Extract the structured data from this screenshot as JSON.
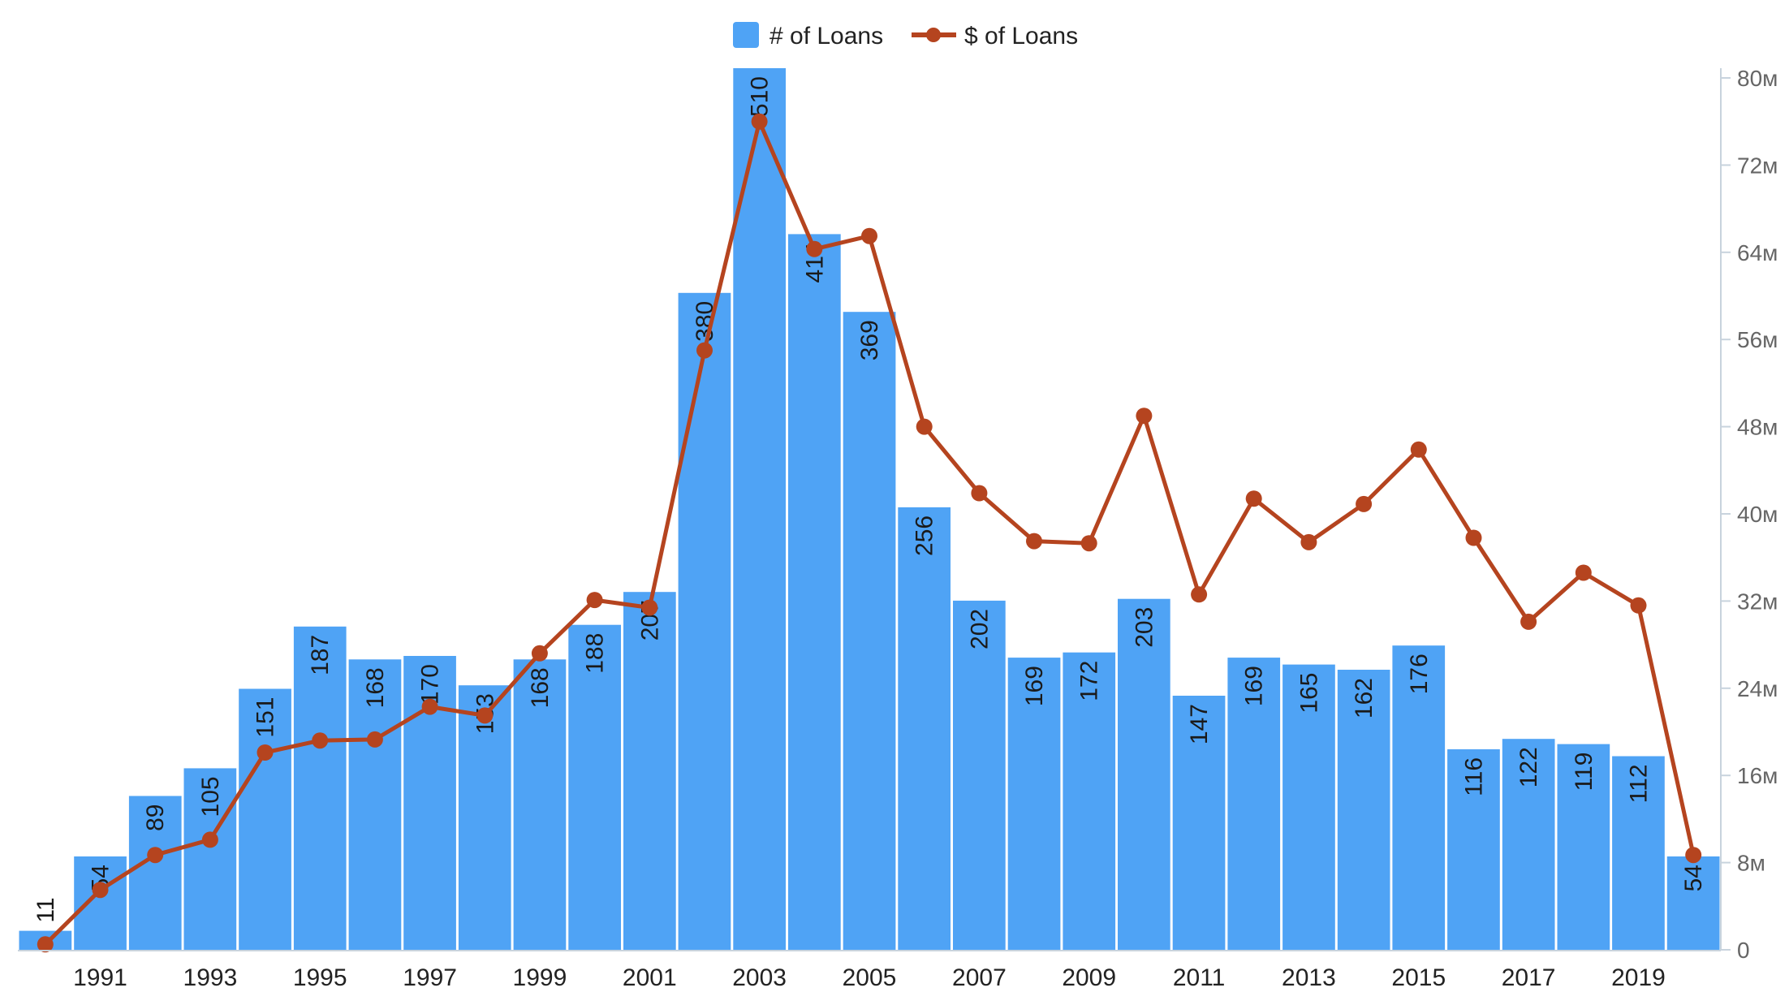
{
  "chart_data": {
    "type": "bar",
    "x": [
      1990,
      1991,
      1992,
      1993,
      1994,
      1995,
      1996,
      1997,
      1998,
      1999,
      2000,
      2001,
      2002,
      2003,
      2004,
      2005,
      2006,
      2007,
      2008,
      2009,
      2010,
      2011,
      2012,
      2013,
      2014,
      2015,
      2016,
      2017,
      2018,
      2019,
      2020
    ],
    "x_tick_labels": [
      "1991",
      "1993",
      "1995",
      "1997",
      "1999",
      "2001",
      "2003",
      "2005",
      "2007",
      "2009",
      "2011",
      "2013",
      "2015",
      "2017",
      "2019"
    ],
    "series": [
      {
        "name": "# of Loans",
        "type": "bar",
        "color": "#4fa3f5",
        "values": [
          11,
          54,
          89,
          105,
          151,
          187,
          168,
          170,
          153,
          168,
          188,
          207,
          380,
          510,
          414,
          369,
          256,
          202,
          169,
          172,
          203,
          147,
          169,
          165,
          162,
          176,
          116,
          122,
          119,
          112,
          54
        ],
        "labels": [
          "11",
          "54",
          "89",
          "105",
          "151",
          "187",
          "168",
          "170",
          "153",
          "168",
          "188",
          "207",
          "380",
          "510",
          "414",
          "369",
          "256",
          "202",
          "169",
          "172",
          "203",
          "147",
          "169",
          "165",
          "162",
          "176",
          "116",
          "122",
          "119",
          "112",
          "54"
        ]
      },
      {
        "name": "$ of Loans",
        "type": "line",
        "color": "#b5441f",
        "values": [
          0.5,
          5.5,
          8.7,
          10.1,
          18.1,
          19.2,
          19.3,
          22.3,
          21.5,
          27.2,
          32.1,
          31.4,
          55.0,
          76.0,
          64.3,
          65.5,
          48.0,
          41.9,
          37.5,
          37.3,
          49.0,
          32.6,
          41.4,
          37.4,
          40.9,
          45.9,
          37.8,
          30.1,
          34.6,
          31.6,
          8.7
        ]
      }
    ],
    "y_bar_range": [
      0,
      510
    ],
    "y_right_axis": {
      "range": [
        0,
        80
      ],
      "unit": "M",
      "ticks": [
        0,
        8,
        16,
        24,
        32,
        40,
        48,
        56,
        64,
        72,
        80
      ],
      "tick_labels": [
        "0",
        "8м",
        "16м",
        "24м",
        "32м",
        "40м",
        "48м",
        "56м",
        "64м",
        "72м",
        "80м"
      ]
    },
    "legend": {
      "position": "top-center",
      "items": [
        "# of Loans",
        "$ of Loans"
      ]
    },
    "title": "",
    "xlabel": "",
    "ylabel": "",
    "grid": false
  }
}
